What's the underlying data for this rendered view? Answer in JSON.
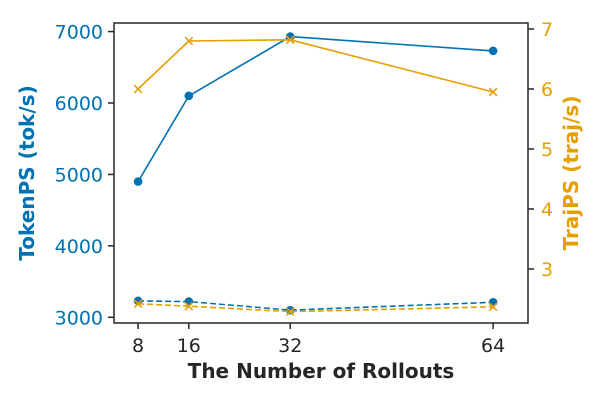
{
  "chart_data": {
    "type": "line",
    "x": [
      8,
      16,
      32,
      64
    ],
    "xlabel": "The Number of Rollouts",
    "xlim": [
      4.2,
      69.5
    ],
    "left_axis": {
      "label": "TokenPS (tok/s)",
      "ylim": [
        2920,
        7120
      ],
      "ticks": [
        3000,
        4000,
        5000,
        6000,
        7000
      ],
      "color": "#0072B2"
    },
    "right_axis": {
      "label": "TrajPS (traj/s)",
      "ylim": [
        2.1,
        7.1
      ],
      "ticks": [
        3,
        4,
        5,
        6,
        7
      ],
      "color": "#E69F00"
    },
    "series": [
      {
        "axis": "left",
        "color": "#0072B2",
        "marker": "circle",
        "dash": "solid",
        "values": [
          4900,
          6100,
          6930,
          6730
        ]
      },
      {
        "axis": "left",
        "color": "#0072B2",
        "marker": "circle",
        "dash": "dashed",
        "values": [
          3230,
          3220,
          3100,
          3210
        ]
      },
      {
        "axis": "right",
        "color": "#E69F00",
        "marker": "x",
        "dash": "solid",
        "values": [
          6.0,
          6.8,
          6.82,
          5.95
        ]
      },
      {
        "axis": "right",
        "color": "#E69F00",
        "marker": "x",
        "dash": "dashed",
        "values": [
          2.42,
          2.38,
          2.29,
          2.37
        ]
      }
    ],
    "grid": false,
    "legend": "none"
  }
}
